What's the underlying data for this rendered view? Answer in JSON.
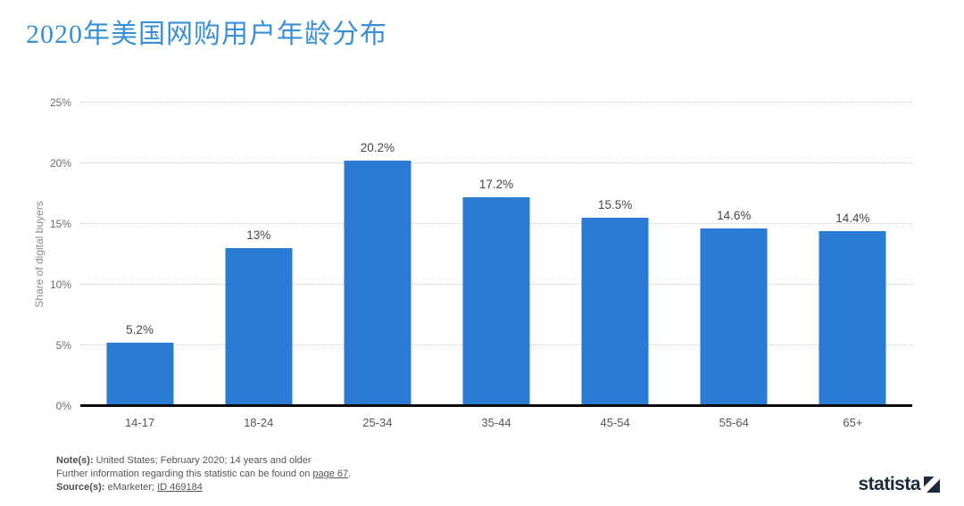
{
  "title": "2020年美国网购用户年龄分布",
  "chart_data": {
    "type": "bar",
    "categories": [
      "14-17",
      "18-24",
      "25-34",
      "35-44",
      "45-54",
      "55-64",
      "65+"
    ],
    "values": [
      5.2,
      13,
      20.2,
      17.2,
      15.5,
      14.6,
      14.4
    ],
    "value_labels": [
      "5.2%",
      "13%",
      "20.2%",
      "17.2%",
      "15.5%",
      "14.6%",
      "14.4%"
    ],
    "xlabel": "",
    "ylabel": "Share of digital buyers",
    "ylim": [
      0,
      25
    ],
    "yticks": [
      0,
      5,
      10,
      15,
      20,
      25
    ],
    "ytick_labels": [
      "0%",
      "5%",
      "10%",
      "15%",
      "20%",
      "25%"
    ],
    "grid": "horizontal-dotted",
    "legend": "none",
    "bar_color": "#2b7ad3"
  },
  "notes": {
    "note_label": "Note(s):",
    "note_text": "United States; February 2020; 14 years and older",
    "further_text": "Further information regarding this statistic can be found on",
    "further_link": "page 67",
    "further_suffix": ".",
    "source_label": "Source(s):",
    "source_text": "eMarketer;",
    "source_link": "ID 469184"
  },
  "branding": {
    "logo_text": "statista",
    "logo_color": "#1b2a3c"
  }
}
